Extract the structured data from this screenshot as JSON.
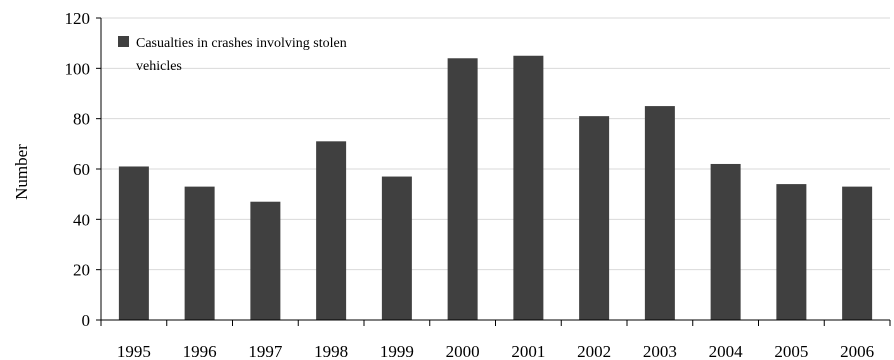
{
  "chart_data": {
    "type": "bar",
    "categories": [
      "1995",
      "1996",
      "1997",
      "1998",
      "1999",
      "2000",
      "2001",
      "2002",
      "2003",
      "2004",
      "2005",
      "2006"
    ],
    "series": [
      {
        "name": "Casualties in crashes involving stolen vehicles",
        "values": [
          61,
          53,
          47,
          71,
          57,
          104,
          105,
          81,
          85,
          62,
          54,
          53
        ]
      }
    ],
    "title": "",
    "xlabel": "",
    "ylabel": "Number",
    "ylim": [
      0,
      120
    ],
    "yticks": [
      0,
      20,
      40,
      60,
      80,
      100,
      120
    ],
    "grid": true,
    "legend": {
      "position": "top-left",
      "lines": [
        "Casualties in crashes involving stolen",
        "vehicles"
      ]
    },
    "colors": {
      "bar": "#404040",
      "grid": "#d9d9d9",
      "axis": "#000000"
    }
  }
}
